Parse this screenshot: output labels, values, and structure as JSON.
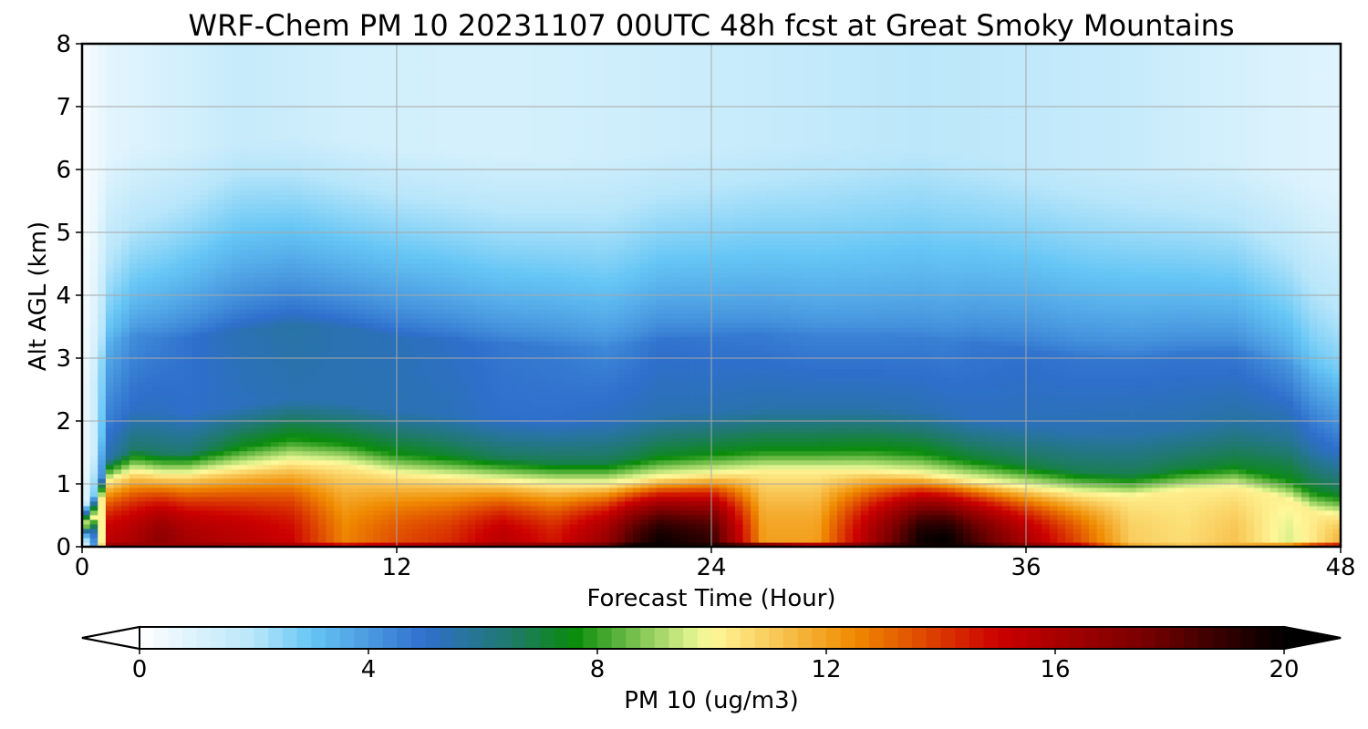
{
  "chart_data": {
    "type": "heatmap",
    "title": "WRF-Chem PM 10  20231107 00UTC 48h fcst at Great Smoky Mountains",
    "xlabel": "Forecast Time (Hour)",
    "ylabel": "Alt AGL (km)",
    "xlim": [
      0,
      48
    ],
    "ylim": [
      0,
      8
    ],
    "xticks": [
      0,
      12,
      24,
      36,
      48
    ],
    "yticks": [
      0,
      1,
      2,
      3,
      4,
      5,
      6,
      7,
      8
    ],
    "grid": true,
    "colorbar": {
      "label": "PM 10  (ug/m3)",
      "min": 0,
      "max": 20,
      "ticks": [
        0,
        4,
        8,
        12,
        16,
        20
      ],
      "extend": "both",
      "stops": [
        {
          "v": 0,
          "c": "#ffffff"
        },
        {
          "v": 2,
          "c": "#b8e6fa"
        },
        {
          "v": 3,
          "c": "#66c6f5"
        },
        {
          "v": 5,
          "c": "#2e6fcc"
        },
        {
          "v": 6.5,
          "c": "#1f7a6a"
        },
        {
          "v": 7.6,
          "c": "#0a8c0a"
        },
        {
          "v": 9.6,
          "c": "#d9f08a"
        },
        {
          "v": 10,
          "c": "#fff89a"
        },
        {
          "v": 12.5,
          "c": "#f08a00"
        },
        {
          "v": 15,
          "c": "#cc0000"
        },
        {
          "v": 17.5,
          "c": "#7a0000"
        },
        {
          "v": 20,
          "c": "#000000"
        }
      ]
    },
    "field": {
      "description_units": "PM 10 (ug/m3) at time (hour) vs altitude (km)",
      "times": [
        0,
        0.5,
        1,
        2,
        3,
        4,
        6,
        8,
        10,
        12,
        14,
        16,
        18,
        20,
        21,
        22,
        24,
        26,
        28,
        30,
        32,
        33,
        34,
        36,
        38,
        40,
        42,
        44,
        46,
        47,
        48
      ],
      "columns": [
        {
          "t": 0,
          "sfc": 0.3,
          "top": 0.3,
          "cap": 0.3,
          "surf": 0.3,
          "blue1": 0.3,
          "blue2": 0.3
        },
        {
          "t": 0.5,
          "sfc": 4.5,
          "top": 0.5,
          "cap": 1.5,
          "surf": 4.5,
          "blue1": 3.0,
          "blue2": 1.5
        },
        {
          "t": 1,
          "sfc": 15.5,
          "top": 1.05,
          "cap": 3.5,
          "surf": 16.5,
          "blue1": 5.5,
          "blue2": 4.6
        },
        {
          "t": 2,
          "sfc": 16.0,
          "top": 1.2,
          "cap": 4.3,
          "surf": 16.5,
          "blue1": 6.6,
          "blue2": 5.1
        },
        {
          "t": 3,
          "sfc": 17.0,
          "top": 1.15,
          "cap": 4.6,
          "surf": 16.6,
          "blue1": 6.5,
          "blue2": 5.2
        },
        {
          "t": 4,
          "sfc": 16.2,
          "top": 1.15,
          "cap": 4.9,
          "surf": 16.6,
          "blue1": 6.4,
          "blue2": 5.0
        },
        {
          "t": 6,
          "sfc": 15.6,
          "top": 1.25,
          "cap": 5.4,
          "surf": 16.4,
          "blue1": 7.4,
          "blue2": 5.2
        },
        {
          "t": 8,
          "sfc": 15.0,
          "top": 1.35,
          "cap": 5.6,
          "surf": 16.0,
          "blue1": 7.8,
          "blue2": 5.4
        },
        {
          "t": 10,
          "sfc": 12.6,
          "top": 1.3,
          "cap": 5.4,
          "surf": 14.6,
          "blue1": 7.6,
          "blue2": 5.4
        },
        {
          "t": 12,
          "sfc": 13.6,
          "top": 1.15,
          "cap": 5.3,
          "surf": 15.4,
          "blue1": 7.5,
          "blue2": 5.4
        },
        {
          "t": 14,
          "sfc": 14.2,
          "top": 1.1,
          "cap": 5.1,
          "surf": 16.0,
          "blue1": 7.2,
          "blue2": 5.3
        },
        {
          "t": 16,
          "sfc": 15.6,
          "top": 1.05,
          "cap": 4.8,
          "surf": 16.6,
          "blue1": 6.8,
          "blue2": 5.0
        },
        {
          "t": 18,
          "sfc": 14.6,
          "top": 1.0,
          "cap": 4.7,
          "surf": 16.8,
          "blue1": 6.8,
          "blue2": 5.0
        },
        {
          "t": 20,
          "sfc": 16.6,
          "top": 1.0,
          "cap": 4.4,
          "surf": 17.6,
          "blue1": 6.8,
          "blue2": 5.2
        },
        {
          "t": 21,
          "sfc": 18.6,
          "top": 1.05,
          "cap": 4.6,
          "surf": 19.6,
          "blue1": 7.0,
          "blue2": 5.3
        },
        {
          "t": 22,
          "sfc": 19.8,
          "top": 1.1,
          "cap": 4.9,
          "surf": 19.8,
          "blue1": 7.3,
          "blue2": 5.4
        },
        {
          "t": 24,
          "sfc": 19.0,
          "top": 1.15,
          "cap": 4.8,
          "surf": 19.4,
          "blue1": 7.4,
          "blue2": 5.4
        },
        {
          "t": 26,
          "sfc": 12.0,
          "top": 1.2,
          "cap": 4.7,
          "surf": 17.2,
          "blue1": 7.5,
          "blue2": 5.5
        },
        {
          "t": 28,
          "sfc": 12.0,
          "top": 1.2,
          "cap": 4.5,
          "surf": 15.5,
          "blue1": 7.5,
          "blue2": 5.5
        },
        {
          "t": 30,
          "sfc": 16.0,
          "top": 1.2,
          "cap": 4.5,
          "surf": 17.5,
          "blue1": 7.6,
          "blue2": 5.5
        },
        {
          "t": 32,
          "sfc": 19.8,
          "top": 1.15,
          "cap": 4.6,
          "surf": 19.6,
          "blue1": 7.6,
          "blue2": 5.4
        },
        {
          "t": 33,
          "sfc": 20.0,
          "top": 1.1,
          "cap": 4.6,
          "surf": 19.8,
          "blue1": 7.4,
          "blue2": 5.3
        },
        {
          "t": 34,
          "sfc": 18.6,
          "top": 1.05,
          "cap": 4.8,
          "surf": 19.0,
          "blue1": 7.2,
          "blue2": 5.2
        },
        {
          "t": 36,
          "sfc": 16.0,
          "top": 0.95,
          "cap": 4.9,
          "surf": 17.0,
          "blue1": 7.0,
          "blue2": 5.3
        },
        {
          "t": 38,
          "sfc": 13.6,
          "top": 0.85,
          "cap": 4.8,
          "surf": 15.0,
          "blue1": 6.8,
          "blue2": 5.4
        },
        {
          "t": 40,
          "sfc": 11.0,
          "top": 0.8,
          "cap": 4.8,
          "surf": 11.6,
          "blue1": 6.8,
          "blue2": 5.5
        },
        {
          "t": 42,
          "sfc": 10.6,
          "top": 0.9,
          "cap": 4.8,
          "surf": 11.0,
          "blue1": 7.0,
          "blue2": 5.5
        },
        {
          "t": 44,
          "sfc": 11.2,
          "top": 0.95,
          "cap": 4.7,
          "surf": 11.6,
          "blue1": 7.2,
          "blue2": 5.7
        },
        {
          "t": 46,
          "sfc": 9.6,
          "top": 0.75,
          "cap": 4.1,
          "surf": 12.0,
          "blue1": 7.4,
          "blue2": 5.8
        },
        {
          "t": 47,
          "sfc": 10.4,
          "top": 0.55,
          "cap": 3.4,
          "surf": 13.5,
          "blue1": 7.3,
          "blue2": 5.4
        },
        {
          "t": 48,
          "sfc": 11.6,
          "top": 0.5,
          "cap": 3.0,
          "surf": 14.5,
          "blue1": 7.0,
          "blue2": 5.0
        }
      ],
      "background_upper": [
        {
          "t": 0,
          "v": 0.1
        },
        {
          "t": 1,
          "v": 0.8
        },
        {
          "t": 6,
          "v": 1.6
        },
        {
          "t": 10,
          "v": 1.3
        },
        {
          "t": 16,
          "v": 1.2
        },
        {
          "t": 24,
          "v": 1.5
        },
        {
          "t": 32,
          "v": 1.9
        },
        {
          "t": 40,
          "v": 1.6
        },
        {
          "t": 45,
          "v": 1.1
        },
        {
          "t": 48,
          "v": 0.9
        }
      ]
    }
  }
}
